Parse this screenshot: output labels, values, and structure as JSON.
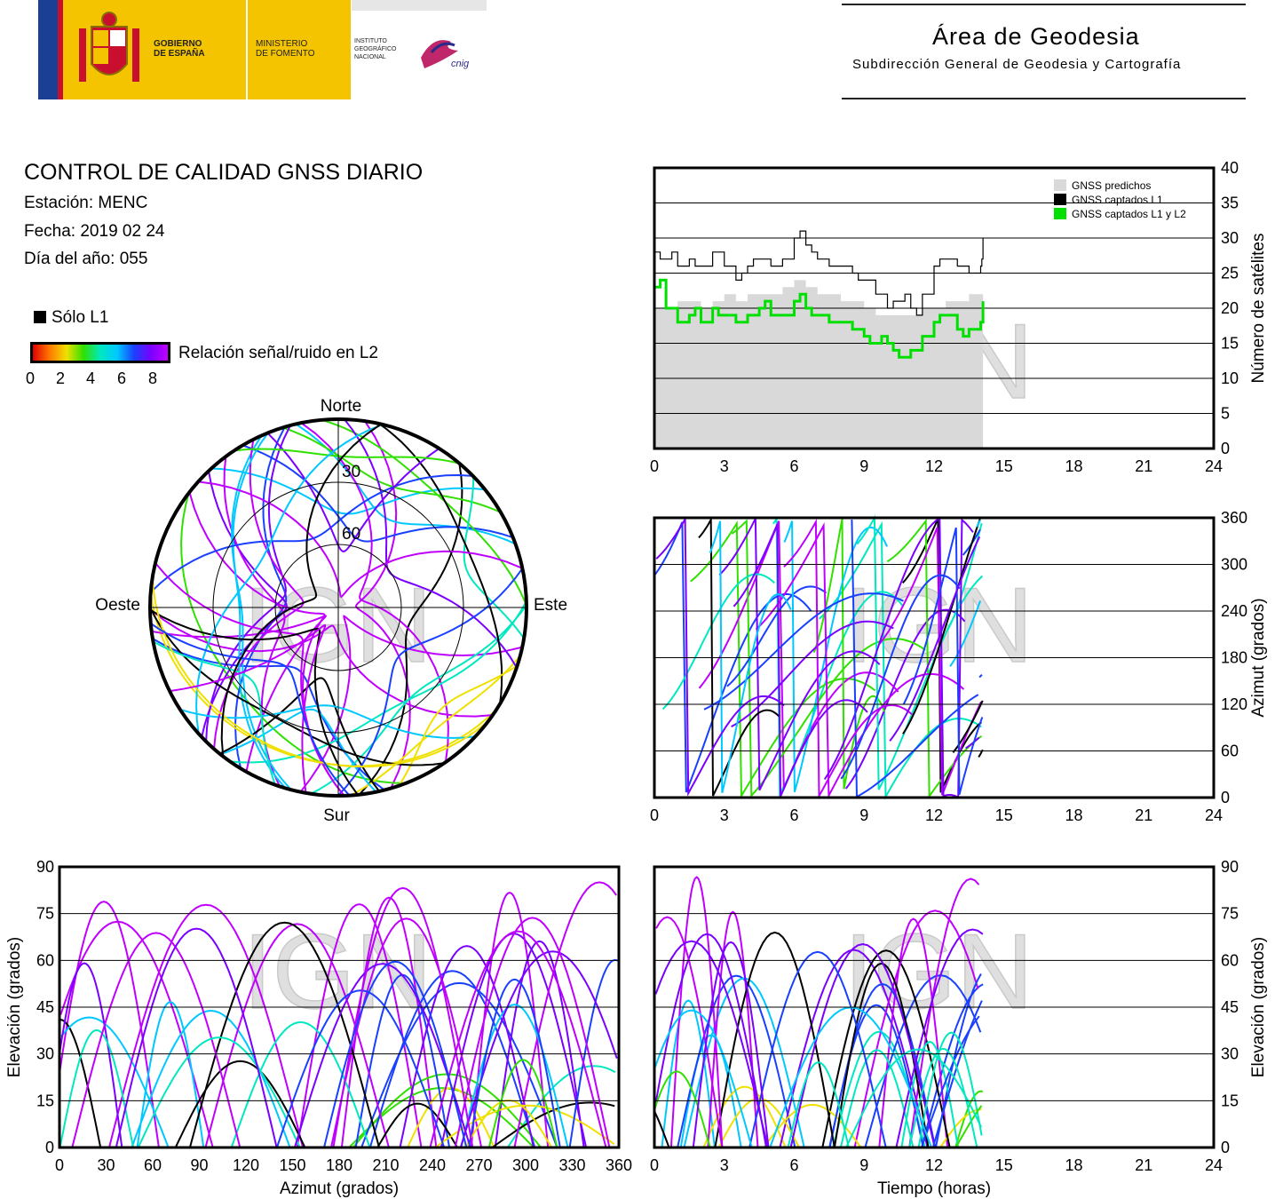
{
  "header": {
    "gov_line1": "GOBIERNO",
    "gov_line2": "DE ESPAÑA",
    "ministry_line1": "MINISTERIO",
    "ministry_line2": "DE FOMENTO",
    "ign_line1": "INSTITUTO",
    "ign_line2": "GEOGRÁFICO",
    "ign_line3": "NACIONAL",
    "cnig_mark": "cnig",
    "area_title": "Área de Geodesia",
    "area_subtitle": "Subdirección General de Geodesia y Cartografía"
  },
  "info": {
    "title": "CONTROL DE CALIDAD GNSS DIARIO",
    "station": "Estación: MENC",
    "date": "Fecha: 2019 02 24",
    "doy": "Día del año: 055",
    "legend_l1": "Sólo L1",
    "snr_label": "Relación señal/ruido en L2",
    "snr_ticks": [
      "0",
      "2",
      "4",
      "6",
      "8"
    ]
  },
  "colors": {
    "predicted": "#d9d9d9",
    "l1": "#000000",
    "l1l2": "#00e000",
    "snr_scale": [
      "#e00000",
      "#ff7a00",
      "#f0e000",
      "#30e000",
      "#00e8c0",
      "#00c8ff",
      "#1a40ff",
      "#7a00ff",
      "#c000ff"
    ]
  },
  "watermark": "IGN",
  "chart_data": [
    {
      "type": "area",
      "name": "satellite-count",
      "x_label": "",
      "ylabel": "Número de satélites",
      "xlim": [
        0,
        24
      ],
      "ylim": [
        0,
        40
      ],
      "x_ticks": [
        "0",
        "3",
        "6",
        "9",
        "12",
        "15",
        "18",
        "21",
        "24"
      ],
      "y_ticks": [
        "0",
        "5",
        "10",
        "15",
        "20",
        "25",
        "30",
        "35",
        "40"
      ],
      "legend": [
        "GNSS predichos",
        "GNSS captados L1",
        "GNSS captados L1 y L2"
      ],
      "legend_position": "top-right",
      "x": [
        0,
        0.5,
        1,
        1.5,
        2,
        2.5,
        3,
        3.5,
        4,
        4.5,
        5,
        5.5,
        6,
        6.5,
        7,
        7.5,
        8,
        8.5,
        9,
        9.5,
        10,
        10.5,
        11,
        11.5,
        12,
        12.5,
        13,
        13.5,
        14,
        14.1
      ],
      "series": [
        {
          "name": "GNSS predichos",
          "values": [
            20,
            20,
            21,
            21,
            20,
            21,
            22,
            21,
            22,
            22,
            22,
            23,
            24,
            23,
            22,
            22,
            21,
            21,
            20,
            19,
            19,
            19,
            19,
            20,
            20,
            21,
            21,
            22,
            22,
            22
          ]
        },
        {
          "name": "GNSS captados L1",
          "values": [
            28,
            27,
            26,
            27,
            26,
            28,
            26,
            24,
            26,
            27,
            26,
            27,
            30,
            29,
            27,
            26,
            26,
            25,
            24,
            22,
            20,
            21,
            20,
            22,
            26,
            27,
            26,
            25,
            26,
            30
          ]
        },
        {
          "name": "GNSS captados L1 y L2",
          "values": [
            23,
            20,
            18,
            19,
            18,
            20,
            19,
            18,
            19,
            20,
            19,
            19,
            21,
            20,
            19,
            18,
            18,
            17,
            16,
            15,
            15,
            13,
            14,
            16,
            18,
            19,
            17,
            17,
            18,
            21
          ]
        }
      ]
    },
    {
      "type": "scatter",
      "name": "skyplot",
      "direction_labels": {
        "north": "Norte",
        "south": "Sur",
        "east": "Este",
        "west": "Oeste"
      },
      "elevation_rings": [
        "30",
        "60"
      ]
    },
    {
      "type": "scatter",
      "name": "azimuth-vs-time",
      "x_label": "",
      "ylabel": "Azimut (grados)",
      "xlim": [
        0,
        24
      ],
      "ylim": [
        0,
        360
      ],
      "x_ticks": [
        "0",
        "3",
        "6",
        "9",
        "12",
        "15",
        "18",
        "21",
        "24"
      ],
      "y_ticks": [
        "0",
        "60",
        "120",
        "180",
        "240",
        "300",
        "360"
      ]
    },
    {
      "type": "scatter",
      "name": "elevation-vs-azimuth",
      "xlabel": "Azimut (grados)",
      "ylabel": "Elevación (grados)",
      "xlim": [
        0,
        360
      ],
      "ylim": [
        0,
        90
      ],
      "x_ticks": [
        "0",
        "30",
        "60",
        "90",
        "120",
        "150",
        "180",
        "210",
        "240",
        "270",
        "300",
        "330",
        "360"
      ],
      "y_ticks": [
        "0",
        "15",
        "30",
        "45",
        "60",
        "75",
        "90"
      ]
    },
    {
      "type": "scatter",
      "name": "elevation-vs-time",
      "xlabel": "Tiempo (horas)",
      "ylabel": "Elevación (grados)",
      "xlim": [
        0,
        24
      ],
      "ylim": [
        0,
        90
      ],
      "x_ticks": [
        "0",
        "3",
        "6",
        "9",
        "12",
        "15",
        "18",
        "21",
        "24"
      ],
      "y_ticks": [
        "0",
        "15",
        "30",
        "45",
        "60",
        "75",
        "90"
      ]
    }
  ]
}
